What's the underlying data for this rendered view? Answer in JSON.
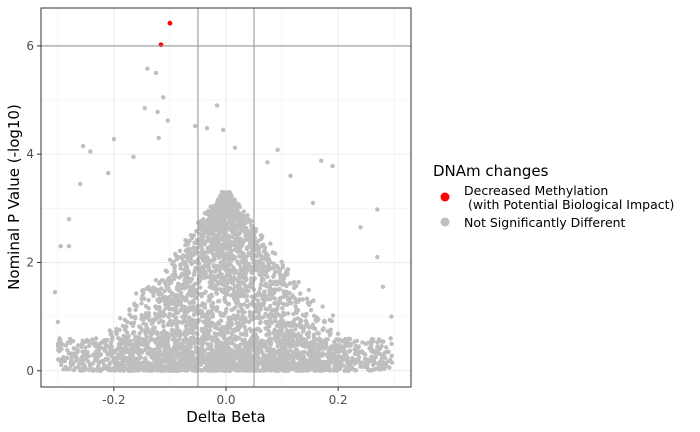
{
  "chart_data": {
    "type": "scatter",
    "title": "",
    "xlabel": "Delta Beta",
    "ylabel": "Nominal P Value (-log10)",
    "xlim": [
      -0.33,
      0.33
    ],
    "ylim": [
      -0.3,
      6.7
    ],
    "x_ticks": [
      -0.2,
      0.0,
      0.2
    ],
    "x_tick_labels": [
      "-0.2",
      "0.0",
      "0.2"
    ],
    "y_ticks": [
      0,
      2,
      4,
      6
    ],
    "y_tick_labels": [
      "0",
      "2",
      "4",
      "6"
    ],
    "grid": true,
    "threshold_lines": {
      "vertical": [
        -0.05,
        0.05
      ],
      "horizontal": [
        6
      ]
    },
    "legend": {
      "title": "DNAm changes",
      "placement": "right",
      "entries": [
        {
          "label_line1": "Decreased Methylation",
          "label_line2": "(with Potential Biological Impact)",
          "color": "#ff0000"
        },
        {
          "label_line1": "Not Significantly Different",
          "label_line2": "",
          "color": "#bebebe"
        }
      ]
    },
    "series": [
      {
        "name": "Decreased Methylation (with Potential Biological Impact)",
        "color": "#ff0000",
        "points": [
          {
            "x": -0.1,
            "y": 6.42
          },
          {
            "x": -0.116,
            "y": 6.02
          }
        ]
      },
      {
        "name": "Not Significantly Different",
        "color": "#bebebe",
        "note_points": "outlying points",
        "points": [
          {
            "x": -0.14,
            "y": 5.58
          },
          {
            "x": -0.125,
            "y": 5.5
          },
          {
            "x": -0.112,
            "y": 5.05
          },
          {
            "x": -0.145,
            "y": 4.85
          },
          {
            "x": -0.122,
            "y": 4.78
          },
          {
            "x": -0.104,
            "y": 4.62
          },
          {
            "x": -0.016,
            "y": 4.9
          },
          {
            "x": -0.055,
            "y": 4.52
          },
          {
            "x": -0.034,
            "y": 4.48
          },
          {
            "x": -0.005,
            "y": 4.45
          },
          {
            "x": -0.12,
            "y": 4.3
          },
          {
            "x": -0.2,
            "y": 4.28
          },
          {
            "x": -0.255,
            "y": 4.15
          },
          {
            "x": -0.242,
            "y": 4.05
          },
          {
            "x": 0.016,
            "y": 4.12
          },
          {
            "x": 0.092,
            "y": 4.08
          },
          {
            "x": 0.074,
            "y": 3.85
          },
          {
            "x": 0.17,
            "y": 3.88
          },
          {
            "x": 0.19,
            "y": 3.78
          },
          {
            "x": 0.115,
            "y": 3.6
          },
          {
            "x": -0.165,
            "y": 3.95
          },
          {
            "x": -0.21,
            "y": 3.65
          },
          {
            "x": -0.26,
            "y": 3.45
          },
          {
            "x": 0.155,
            "y": 3.1
          },
          {
            "x": 0.27,
            "y": 2.98
          },
          {
            "x": 0.24,
            "y": 2.65
          },
          {
            "x": -0.28,
            "y": 2.8
          },
          {
            "x": -0.295,
            "y": 2.3
          },
          {
            "x": -0.28,
            "y": 2.3
          },
          {
            "x": -0.305,
            "y": 1.45
          },
          {
            "x": 0.295,
            "y": 1.0
          },
          {
            "x": 0.29,
            "y": 0.35
          },
          {
            "x": -0.3,
            "y": 0.9
          },
          {
            "x": -0.29,
            "y": 0.25
          },
          {
            "x": 0.27,
            "y": 2.1
          },
          {
            "x": 0.28,
            "y": 1.55
          }
        ],
        "cloud_summary": "dense cloud of many points spanning x from about -0.3 to 0.3, y from 0 up to about 3.4, densest near x=0"
      }
    ]
  }
}
